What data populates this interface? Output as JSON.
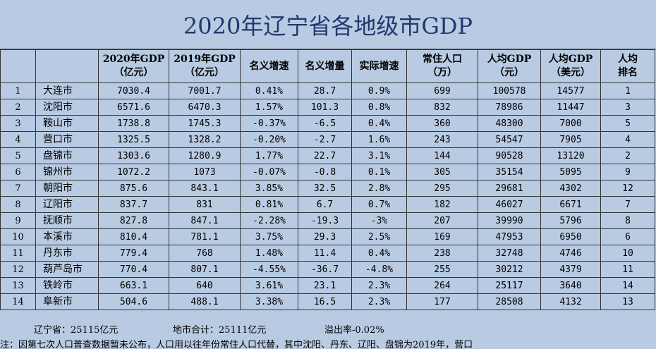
{
  "title": "2020年辽宁省各地级市GDP",
  "headers": [
    "",
    "",
    "2020年GDP\n（亿元）",
    "2019年GDP\n（亿元）",
    "名义增速",
    "名义增量",
    "实际增速",
    "常住人口\n（万）",
    "人均GDP\n（元）",
    "人均GDP\n（美元）",
    "人均\n排名"
  ],
  "rows": [
    [
      "1",
      "大连市",
      "7030.4",
      "7001.7",
      "0.41%",
      "28.7",
      "0.9%",
      "699",
      "100578",
      "14577",
      "1"
    ],
    [
      "2",
      "沈阳市",
      "6571.6",
      "6470.3",
      "1.57%",
      "101.3",
      "0.8%",
      "832",
      "78986",
      "11447",
      "3"
    ],
    [
      "3",
      "鞍山市",
      "1738.8",
      "1745.3",
      "-0.37%",
      "-6.5",
      "0.4%",
      "360",
      "48300",
      "7000",
      "5"
    ],
    [
      "4",
      "营口市",
      "1325.5",
      "1328.2",
      "-0.20%",
      "-2.7",
      "1.6%",
      "243",
      "54547",
      "7905",
      "4"
    ],
    [
      "5",
      "盘锦市",
      "1303.6",
      "1280.9",
      "1.77%",
      "22.7",
      "3.1%",
      "144",
      "90528",
      "13120",
      "2"
    ],
    [
      "6",
      "锦州市",
      "1072.2",
      "1073",
      "-0.07%",
      "-0.8",
      "0.1%",
      "305",
      "35154",
      "5095",
      "9"
    ],
    [
      "7",
      "朝阳市",
      "875.6",
      "843.1",
      "3.85%",
      "32.5",
      "2.8%",
      "295",
      "29681",
      "4302",
      "12"
    ],
    [
      "8",
      "辽阳市",
      "837.7",
      "831",
      "0.81%",
      "6.7",
      "0.7%",
      "182",
      "46027",
      "6671",
      "7"
    ],
    [
      "9",
      "抚顺市",
      "827.8",
      "847.1",
      "-2.28%",
      "-19.3",
      "-3%",
      "207",
      "39990",
      "5796",
      "8"
    ],
    [
      "10",
      "本溪市",
      "810.4",
      "781.1",
      "3.75%",
      "29.3",
      "2.5%",
      "169",
      "47953",
      "6950",
      "6"
    ],
    [
      "11",
      "丹东市",
      "779.4",
      "768",
      "1.48%",
      "11.4",
      "0.4%",
      "238",
      "32748",
      "4746",
      "10"
    ],
    [
      "12",
      "葫芦岛市",
      "770.4",
      "807.1",
      "-4.55%",
      "-36.7",
      "-4.8%",
      "255",
      "30212",
      "4379",
      "11"
    ],
    [
      "13",
      "铁岭市",
      "663.1",
      "640",
      "3.61%",
      "23.1",
      "2.3%",
      "264",
      "25117",
      "3640",
      "14"
    ],
    [
      "14",
      "阜新市",
      "504.6",
      "488.1",
      "3.38%",
      "16.5",
      "2.3%",
      "177",
      "28508",
      "4132",
      "13"
    ]
  ],
  "summary": {
    "province": "辽宁省：25115亿元",
    "city_total": "地市合计：25111亿元",
    "overflow": "溢出率-0.02%"
  },
  "note": "注：因第七次人口普查数据暂未公布，人口用以往年份常住人口代替，其中沈阳、丹东、辽阳、盘锦为2019年，营口"
}
